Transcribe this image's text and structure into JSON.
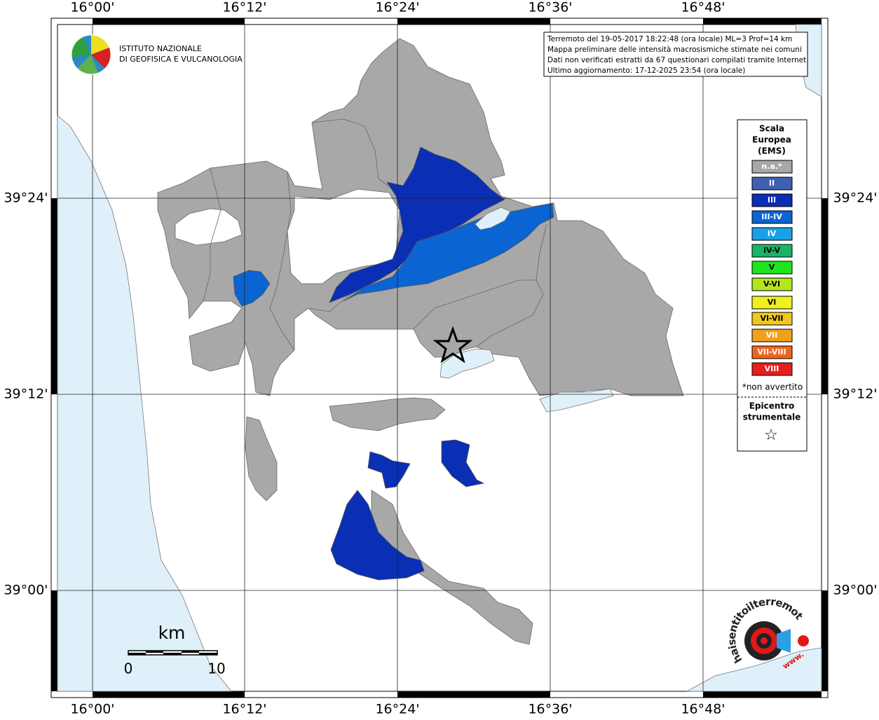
{
  "grid": {
    "lon_labels": [
      "16°00'",
      "16°12'",
      "16°24'",
      "16°36'",
      "16°48'"
    ],
    "lat_labels": [
      "39°24'",
      "39°12'",
      "39°00'"
    ]
  },
  "header": {
    "info": [
      "Terremoto del 19-05-2017 18:22:48 (ora locale) ML=3 Prof=14 km",
      "Mappa preliminare delle intensità macrosismiche stimate nei comuni",
      "Dati non verificati estratti da 67 questionari compilati tramite Internet.",
      "Ultimo aggiornamento: 17-12-2025 23:54 (ora locale)"
    ]
  },
  "logo": {
    "lines": [
      "ISTITUTO NAZIONALE",
      "DI GEOFISICA E VULCANOLOGIA"
    ]
  },
  "legend": {
    "title": [
      "Scala",
      "Europea",
      "(EMS)"
    ],
    "items": [
      {
        "label": "n.a.*",
        "color": "#a8a8a8"
      },
      {
        "label": "II",
        "color": "#3f5fb0"
      },
      {
        "label": "III",
        "color": "#0a2fb4"
      },
      {
        "label": "III-IV",
        "color": "#0a64d2"
      },
      {
        "label": "IV",
        "color": "#1aa0e6"
      },
      {
        "label": "IV-V",
        "color": "#19b464"
      },
      {
        "label": "V",
        "color": "#1ee61e"
      },
      {
        "label": "V-VI",
        "color": "#b4e61e"
      },
      {
        "label": "VI",
        "color": "#f0f01e"
      },
      {
        "label": "VI-VII",
        "color": "#f0c81e"
      },
      {
        "label": "VII",
        "color": "#f0a01e"
      },
      {
        "label": "VII-VIII",
        "color": "#f0641e"
      },
      {
        "label": "VIII",
        "color": "#e61e1e"
      }
    ],
    "note": "*non avvertito",
    "epicenter": [
      "Epicentro",
      "strumentale"
    ],
    "epicenter_symbol": "☆"
  },
  "scale": {
    "unit": "km",
    "labels": [
      "0",
      "10"
    ]
  },
  "badge": {
    "text": "haisentitoilterremoto.it",
    "prefix": "www."
  }
}
